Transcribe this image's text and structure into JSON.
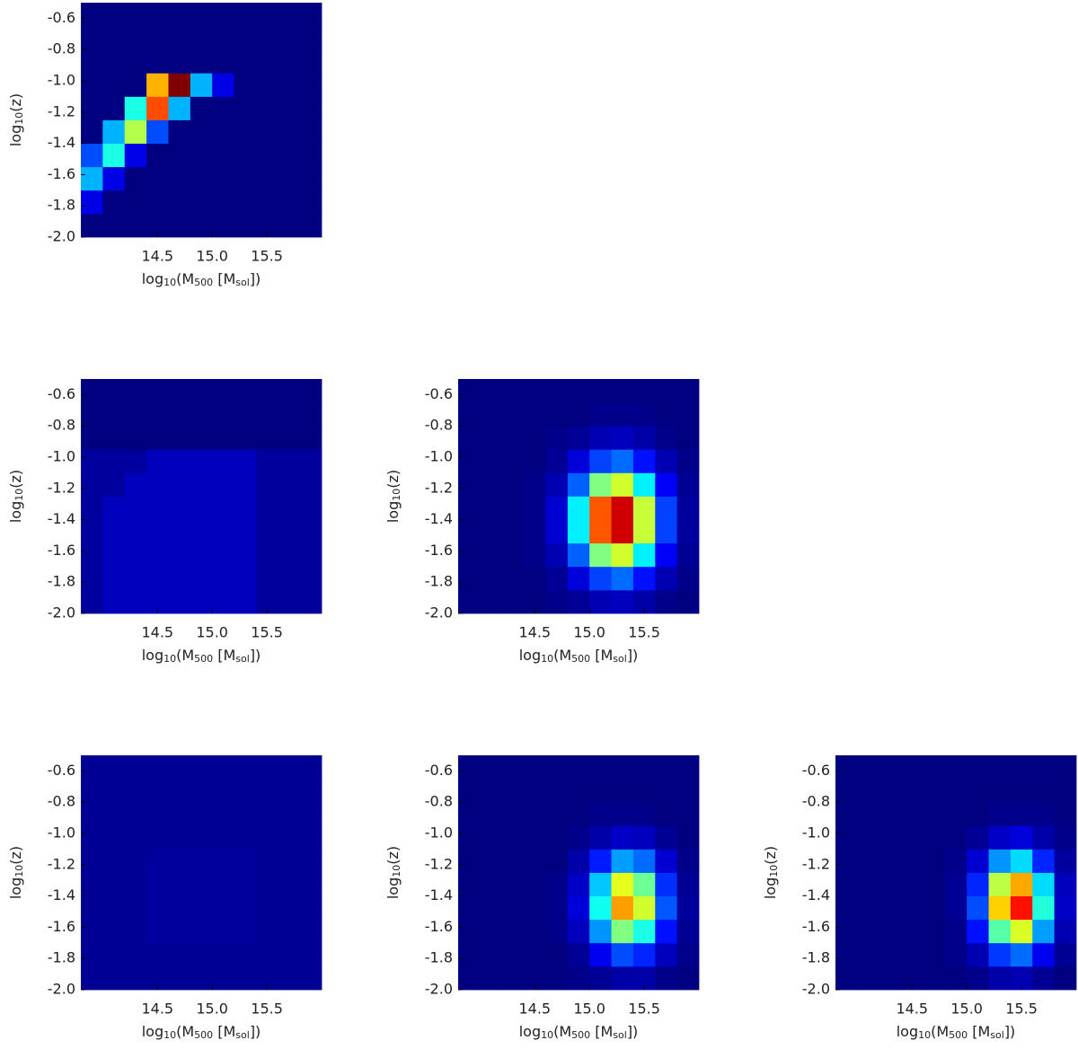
{
  "chart_data": [
    {
      "type": "heatmap",
      "colormap": "jet",
      "xlim": [
        13.8,
        16.0
      ],
      "ylim": [
        -2.0,
        -0.5
      ],
      "xticks": [
        14.5,
        {
          "value": 15,
          "label": "15.0"
        },
        15.5
      ],
      "yticks": [
        -0.6,
        -0.8,
        {
          "value": -1,
          "label": "-1.0"
        },
        -1.2,
        -1.4,
        -1.6,
        -1.8,
        {
          "value": -2,
          "label": "-2.0"
        }
      ],
      "xlabel": [
        "log",
        "10",
        "(M",
        "500",
        " [M",
        "sol",
        "])"
      ],
      "ylabel": [
        "log",
        "10",
        "(z)"
      ],
      "xbins": [
        13.8,
        14.0,
        14.2,
        14.4,
        14.6,
        14.8,
        15.0,
        15.2,
        15.4,
        15.6,
        15.8,
        16.0
      ],
      "ybins": [
        -2.0,
        -1.85,
        -1.7,
        -1.55,
        -1.4,
        -1.25,
        -1.1,
        -0.95,
        -0.8,
        -0.65,
        -0.5
      ],
      "z": [
        [
          0,
          0,
          0,
          0,
          0,
          0,
          0,
          0,
          0,
          0,
          0
        ],
        [
          0.1,
          0,
          0,
          0,
          0,
          0,
          0,
          0,
          0,
          0,
          0
        ],
        [
          0.3,
          0.1,
          0,
          0,
          0,
          0,
          0,
          0,
          0,
          0,
          0
        ],
        [
          0.2,
          0.4,
          0.1,
          0,
          0,
          0,
          0,
          0,
          0,
          0,
          0
        ],
        [
          0,
          0.3,
          0.55,
          0.2,
          0,
          0,
          0,
          0,
          0,
          0,
          0
        ],
        [
          0,
          0,
          0.4,
          0.8,
          0.3,
          0,
          0,
          0,
          0,
          0,
          0
        ],
        [
          0,
          0,
          0,
          0.7,
          1.0,
          0.3,
          0.1,
          0,
          0,
          0,
          0
        ],
        [
          0,
          0,
          0,
          0,
          0,
          0,
          0,
          0,
          0,
          0,
          0
        ],
        [
          0,
          0,
          0,
          0,
          0,
          0,
          0,
          0,
          0,
          0,
          0
        ],
        [
          0,
          0,
          0,
          0,
          0,
          0,
          0,
          0,
          0,
          0,
          0
        ]
      ]
    },
    {
      "type": "heatmap",
      "colormap": "jet",
      "xlim": [
        13.8,
        16.0
      ],
      "ylim": [
        -2.0,
        -0.5
      ],
      "xticks": [
        14.5,
        {
          "value": 15,
          "label": "15.0"
        },
        15.5
      ],
      "yticks": [
        -0.6,
        -0.8,
        {
          "value": -1,
          "label": "-1.0"
        },
        -1.2,
        -1.4,
        -1.6,
        -1.8,
        {
          "value": -2,
          "label": "-2.0"
        }
      ],
      "xlabel": [
        "log",
        "10",
        "(M",
        "500",
        " [M",
        "sol",
        "])"
      ],
      "ylabel": [
        "log",
        "10",
        "(z)"
      ],
      "xbins": [
        13.8,
        14.0,
        14.2,
        14.4,
        14.6,
        14.8,
        15.0,
        15.2,
        15.4,
        15.6,
        15.8,
        16.0
      ],
      "ybins": [
        -2.0,
        -1.85,
        -1.7,
        -1.55,
        -1.4,
        -1.25,
        -1.1,
        -0.95,
        -0.8,
        -0.65,
        -0.5
      ],
      "z": [
        [
          0.03,
          0.06,
          0.06,
          0.06,
          0.06,
          0.06,
          0.06,
          0.06,
          0.03,
          0.03,
          0.03
        ],
        [
          0.03,
          0.06,
          0.06,
          0.06,
          0.06,
          0.06,
          0.06,
          0.06,
          0.03,
          0.03,
          0.03
        ],
        [
          0.03,
          0.06,
          0.06,
          0.06,
          0.06,
          0.06,
          0.06,
          0.06,
          0.03,
          0.03,
          0.03
        ],
        [
          0.03,
          0.06,
          0.06,
          0.06,
          0.06,
          0.06,
          0.06,
          0.06,
          0.03,
          0.03,
          0.03
        ],
        [
          0.03,
          0.06,
          0.06,
          0.06,
          0.06,
          0.06,
          0.06,
          0.06,
          0.03,
          0.03,
          0.03
        ],
        [
          0.03,
          0.03,
          0.06,
          0.06,
          0.06,
          0.06,
          0.06,
          0.06,
          0.03,
          0.03,
          0.03
        ],
        [
          0.03,
          0.03,
          0.03,
          0.06,
          0.06,
          0.06,
          0.06,
          0.06,
          0.03,
          0.03,
          0.03
        ],
        [
          0,
          0,
          0,
          0,
          0,
          0,
          0,
          0,
          0,
          0,
          0
        ],
        [
          0,
          0,
          0,
          0,
          0,
          0,
          0,
          0,
          0,
          0,
          0
        ],
        [
          0,
          0,
          0,
          0,
          0,
          0,
          0,
          0,
          0,
          0,
          0
        ]
      ]
    },
    {
      "type": "heatmap",
      "colormap": "jet",
      "xlim": [
        13.8,
        16.0
      ],
      "ylim": [
        -2.0,
        -0.5
      ],
      "xticks": [
        14.5,
        {
          "value": 15,
          "label": "15.0"
        },
        15.5
      ],
      "yticks": [
        -0.6,
        -0.8,
        {
          "value": -1,
          "label": "-1.0"
        },
        -1.2,
        -1.4,
        -1.6,
        -1.8,
        {
          "value": -2,
          "label": "-2.0"
        }
      ],
      "xlabel": [
        "log",
        "10",
        "(M",
        "500",
        " [M",
        "sol",
        "])"
      ],
      "ylabel": [
        "log",
        "10",
        "(z)"
      ],
      "xbins": [
        13.8,
        14.0,
        14.2,
        14.4,
        14.6,
        14.8,
        15.0,
        15.2,
        15.4,
        15.6,
        15.8,
        16.0
      ],
      "ybins": [
        -2.0,
        -1.85,
        -1.7,
        -1.55,
        -1.4,
        -1.25,
        -1.1,
        -0.95,
        -0.8,
        -0.65,
        -0.5
      ],
      "z": [
        [
          0,
          0,
          0,
          0,
          0.01,
          0.02,
          0.05,
          0.06,
          0.04,
          0.01,
          0
        ],
        [
          0,
          0,
          0,
          0,
          0.02,
          0.09,
          0.19,
          0.23,
          0.14,
          0.05,
          0.01
        ],
        [
          0,
          0,
          0,
          0.01,
          0.05,
          0.22,
          0.5,
          0.58,
          0.36,
          0.12,
          0.02
        ],
        [
          0,
          0,
          0,
          0.01,
          0.08,
          0.36,
          0.79,
          0.92,
          0.57,
          0.19,
          0.03
        ],
        [
          0,
          0,
          0,
          0.01,
          0.08,
          0.36,
          0.79,
          0.92,
          0.57,
          0.19,
          0.03
        ],
        [
          0,
          0,
          0,
          0.01,
          0.05,
          0.22,
          0.5,
          0.58,
          0.36,
          0.12,
          0.02
        ],
        [
          0,
          0,
          0,
          0,
          0.02,
          0.09,
          0.19,
          0.23,
          0.14,
          0.05,
          0.01
        ],
        [
          0,
          0,
          0,
          0,
          0.01,
          0.02,
          0.05,
          0.06,
          0.04,
          0.01,
          0
        ],
        [
          0,
          0,
          0,
          0,
          0,
          0,
          0.01,
          0.01,
          0.01,
          0,
          0
        ],
        [
          0,
          0,
          0,
          0,
          0,
          0,
          0,
          0,
          0,
          0,
          0
        ]
      ]
    },
    {
      "type": "heatmap",
      "colormap": "jet",
      "xlim": [
        13.8,
        16.0
      ],
      "ylim": [
        -2.0,
        -0.5
      ],
      "xticks": [
        14.5,
        {
          "value": 15,
          "label": "15.0"
        },
        15.5
      ],
      "yticks": [
        -0.6,
        -0.8,
        {
          "value": -1,
          "label": "-1.0"
        },
        -1.2,
        -1.4,
        -1.6,
        -1.8,
        {
          "value": -2,
          "label": "-2.0"
        }
      ],
      "xlabel": [
        "log",
        "10",
        "(M",
        "500",
        " [M",
        "sol",
        "])"
      ],
      "ylabel": [
        "log",
        "10",
        "(z)"
      ],
      "xbins": [
        13.8,
        14.0,
        14.2,
        14.4,
        14.6,
        14.8,
        15.0,
        15.2,
        15.4,
        15.6,
        15.8,
        16.0
      ],
      "ybins": [
        -2.0,
        -1.85,
        -1.7,
        -1.55,
        -1.4,
        -1.25,
        -1.1,
        -0.95,
        -0.8,
        -0.65,
        -0.5
      ],
      "z": [
        [
          0.02,
          0.02,
          0.02,
          0.02,
          0.02,
          0.02,
          0.02,
          0.02,
          0.02,
          0.02,
          0.02
        ],
        [
          0.02,
          0.02,
          0.02,
          0.02,
          0.02,
          0.02,
          0.02,
          0.02,
          0.02,
          0.02,
          0.02
        ],
        [
          0.02,
          0.02,
          0.02,
          0.03,
          0.03,
          0.03,
          0.03,
          0.03,
          0.02,
          0.02,
          0.02
        ],
        [
          0.02,
          0.02,
          0.02,
          0.03,
          0.03,
          0.03,
          0.03,
          0.03,
          0.02,
          0.02,
          0.02
        ],
        [
          0.02,
          0.02,
          0.02,
          0.03,
          0.03,
          0.03,
          0.03,
          0.03,
          0.02,
          0.02,
          0.02
        ],
        [
          0.02,
          0.02,
          0.02,
          0.03,
          0.03,
          0.03,
          0.03,
          0.03,
          0.02,
          0.02,
          0.02
        ],
        [
          0.02,
          0.02,
          0.02,
          0.02,
          0.02,
          0.02,
          0.02,
          0.02,
          0.02,
          0.02,
          0.02
        ],
        [
          0.02,
          0.02,
          0.02,
          0.02,
          0.02,
          0.02,
          0.02,
          0.02,
          0.02,
          0.02,
          0.02
        ],
        [
          0.02,
          0.02,
          0.02,
          0.02,
          0.02,
          0.02,
          0.02,
          0.02,
          0.02,
          0.02,
          0.02
        ],
        [
          0.02,
          0.02,
          0.02,
          0.02,
          0.02,
          0.02,
          0.02,
          0.02,
          0.02,
          0.02,
          0.02
        ]
      ]
    },
    {
      "type": "heatmap",
      "colormap": "jet",
      "xlim": [
        13.8,
        16.0
      ],
      "ylim": [
        -2.0,
        -0.5
      ],
      "xticks": [
        14.5,
        {
          "value": 15,
          "label": "15.0"
        },
        15.5
      ],
      "yticks": [
        -0.6,
        -0.8,
        {
          "value": -1,
          "label": "-1.0"
        },
        -1.2,
        -1.4,
        -1.6,
        -1.8,
        {
          "value": -2,
          "label": "-2.0"
        }
      ],
      "xlabel": [
        "log",
        "10",
        "(M",
        "500",
        " [M",
        "sol",
        "])"
      ],
      "ylabel": [
        "log",
        "10",
        "(z)"
      ],
      "xbins": [
        13.8,
        14.0,
        14.2,
        14.4,
        14.6,
        14.8,
        15.0,
        15.2,
        15.4,
        15.6,
        15.8,
        16.0
      ],
      "ybins": [
        -2.0,
        -1.85,
        -1.7,
        -1.55,
        -1.4,
        -1.25,
        -1.1,
        -0.95,
        -0.8,
        -0.65,
        -0.5
      ],
      "z": [
        [
          0,
          0,
          0,
          0,
          0,
          0.01,
          0.02,
          0.04,
          0.04,
          0.01,
          0
        ],
        [
          0,
          0,
          0,
          0,
          0,
          0.02,
          0.11,
          0.2,
          0.16,
          0.06,
          0.01
        ],
        [
          0,
          0,
          0,
          0,
          0.01,
          0.06,
          0.27,
          0.5,
          0.4,
          0.14,
          0.02
        ],
        [
          0,
          0,
          0,
          0,
          0.01,
          0.09,
          0.39,
          0.72,
          0.58,
          0.21,
          0.03
        ],
        [
          0,
          0,
          0,
          0,
          0.01,
          0.07,
          0.32,
          0.6,
          0.48,
          0.17,
          0.02
        ],
        [
          0,
          0,
          0,
          0,
          0,
          0.04,
          0.15,
          0.28,
          0.23,
          0.08,
          0.01
        ],
        [
          0,
          0,
          0,
          0,
          0,
          0.01,
          0.04,
          0.07,
          0.06,
          0.02,
          0
        ],
        [
          0,
          0,
          0,
          0,
          0,
          0,
          0.01,
          0.01,
          0.01,
          0,
          0
        ],
        [
          0,
          0,
          0,
          0,
          0,
          0,
          0,
          0,
          0,
          0,
          0
        ],
        [
          0,
          0,
          0,
          0,
          0,
          0,
          0,
          0,
          0,
          0,
          0
        ]
      ]
    },
    {
      "type": "heatmap",
      "colormap": "jet",
      "xlim": [
        13.8,
        16.0
      ],
      "ylim": [
        -2.0,
        -0.5
      ],
      "xticks": [
        14.5,
        {
          "value": 15,
          "label": "15.0"
        },
        15.5
      ],
      "yticks": [
        -0.6,
        -0.8,
        {
          "value": -1,
          "label": "-1.0"
        },
        -1.2,
        -1.4,
        -1.6,
        -1.8,
        {
          "value": -2,
          "label": "-2.0"
        }
      ],
      "xlabel": [
        "log",
        "10",
        "(M",
        "500",
        " [M",
        "sol",
        "])"
      ],
      "ylabel": [
        "log",
        "10",
        "(z)"
      ],
      "xbins": [
        13.8,
        14.0,
        14.2,
        14.4,
        14.6,
        14.8,
        15.0,
        15.2,
        15.4,
        15.6,
        15.8,
        16.0
      ],
      "ybins": [
        -2.0,
        -1.85,
        -1.7,
        -1.55,
        -1.4,
        -1.25,
        -1.1,
        -0.95,
        -0.8,
        -0.65,
        -0.5
      ],
      "z": [
        [
          0,
          0,
          0,
          0,
          0,
          0,
          0.01,
          0.04,
          0.05,
          0.02,
          0
        ],
        [
          0,
          0,
          0,
          0,
          0,
          0.01,
          0.05,
          0.18,
          0.23,
          0.11,
          0.02
        ],
        [
          0,
          0,
          0,
          0,
          0,
          0.01,
          0.14,
          0.46,
          0.59,
          0.28,
          0.05
        ],
        [
          0,
          0,
          0,
          0,
          0,
          0.02,
          0.2,
          0.67,
          0.86,
          0.41,
          0.07
        ],
        [
          0,
          0,
          0,
          0,
          0,
          0.02,
          0.16,
          0.56,
          0.71,
          0.34,
          0.06
        ],
        [
          0,
          0,
          0,
          0,
          0,
          0.01,
          0.08,
          0.27,
          0.34,
          0.16,
          0.03
        ],
        [
          0,
          0,
          0,
          0,
          0,
          0,
          0.02,
          0.07,
          0.09,
          0.04,
          0.01
        ],
        [
          0,
          0,
          0,
          0,
          0,
          0,
          0,
          0.01,
          0.01,
          0.01,
          0
        ],
        [
          0,
          0,
          0,
          0,
          0,
          0,
          0,
          0,
          0,
          0,
          0
        ],
        [
          0,
          0,
          0,
          0,
          0,
          0,
          0,
          0,
          0,
          0,
          0
        ]
      ]
    }
  ]
}
